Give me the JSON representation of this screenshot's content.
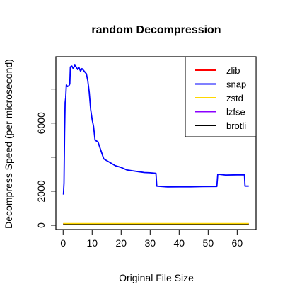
{
  "chart_data": {
    "type": "line",
    "title": "random Decompression",
    "xlabel": "Original File Size",
    "ylabel": "Decompress Speed (per microsecond)",
    "xlim": [
      -2.5,
      66.5
    ],
    "ylim": [
      -250,
      9900
    ],
    "x_ticks": [
      0,
      10,
      20,
      30,
      40,
      50,
      60
    ],
    "y_ticks": [
      0,
      2000,
      4000,
      6000,
      8000
    ],
    "y_tick_labels": [
      "0",
      "2000",
      "",
      "6000",
      ""
    ],
    "grid": false,
    "legend_position": "top-right",
    "series": [
      {
        "name": "zlib",
        "color": "#ff0000",
        "points": [
          [
            0,
            80
          ],
          [
            64,
            80
          ]
        ]
      },
      {
        "name": "snap",
        "color": "#0000ff",
        "points": [
          [
            0.1,
            1800
          ],
          [
            0.3,
            2500
          ],
          [
            0.5,
            5400
          ],
          [
            0.7,
            7200
          ],
          [
            0.9,
            7500
          ],
          [
            1.1,
            8250
          ],
          [
            1.5,
            8150
          ],
          [
            2.0,
            8200
          ],
          [
            2.3,
            8300
          ],
          [
            2.5,
            9300
          ],
          [
            3.0,
            9350
          ],
          [
            3.5,
            9200
          ],
          [
            4.0,
            9400
          ],
          [
            4.5,
            9300
          ],
          [
            5.0,
            9150
          ],
          [
            5.5,
            9250
          ],
          [
            6.0,
            9050
          ],
          [
            6.5,
            9200
          ],
          [
            7.0,
            9100
          ],
          [
            7.5,
            9000
          ],
          [
            8.0,
            8900
          ],
          [
            8.5,
            8500
          ],
          [
            9.0,
            7800
          ],
          [
            9.5,
            6800
          ],
          [
            10.0,
            6200
          ],
          [
            10.5,
            5800
          ],
          [
            11.0,
            5000
          ],
          [
            12.0,
            4900
          ],
          [
            13.0,
            4400
          ],
          [
            14.0,
            3900
          ],
          [
            15.0,
            3800
          ],
          [
            16.0,
            3700
          ],
          [
            18.0,
            3500
          ],
          [
            20.0,
            3400
          ],
          [
            22.0,
            3250
          ],
          [
            24.0,
            3200
          ],
          [
            26.0,
            3150
          ],
          [
            28.0,
            3100
          ],
          [
            30.0,
            3080
          ],
          [
            32.0,
            3050
          ],
          [
            32.3,
            2300
          ],
          [
            36.0,
            2250
          ],
          [
            40.0,
            2260
          ],
          [
            44.0,
            2260
          ],
          [
            48.0,
            2270
          ],
          [
            53.0,
            2280
          ],
          [
            53.3,
            3000
          ],
          [
            56.0,
            2950
          ],
          [
            60.0,
            2960
          ],
          [
            62.5,
            2960
          ],
          [
            62.7,
            2300
          ],
          [
            64.0,
            2300
          ]
        ]
      },
      {
        "name": "zstd",
        "color": "#ffd700",
        "points": [
          [
            0,
            100
          ],
          [
            64,
            100
          ]
        ]
      },
      {
        "name": "lzfse",
        "color": "#8b00ff",
        "points": [
          [
            0,
            60
          ],
          [
            64,
            60
          ]
        ]
      },
      {
        "name": "brotli",
        "color": "#000000",
        "points": [
          [
            0,
            70
          ],
          [
            64,
            70
          ]
        ]
      }
    ]
  }
}
